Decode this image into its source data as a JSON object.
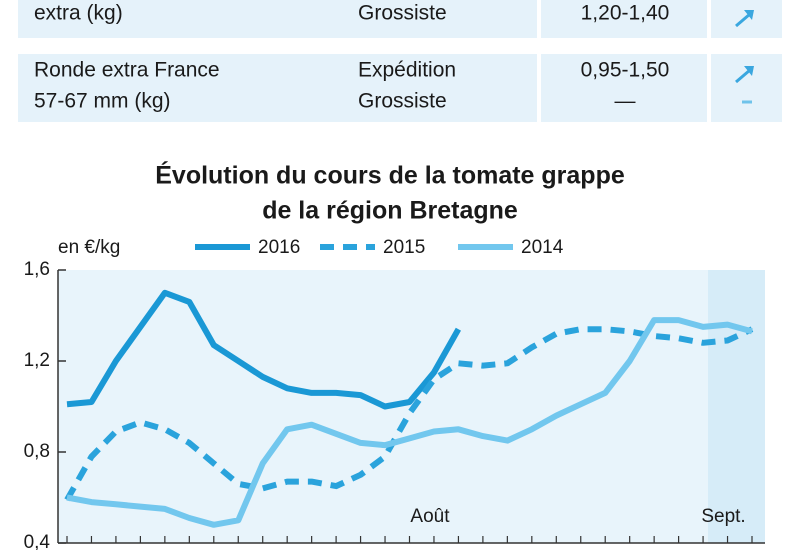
{
  "table": {
    "rows": [
      [
        [
          "extra (kg)"
        ],
        [
          "Grossiste"
        ],
        [
          "1,20-1,40"
        ]
      ],
      [
        [
          "Ronde extra France",
          "57-67 mm (kg)"
        ],
        [
          "Expédition",
          "Grossiste"
        ],
        [
          "0,95-1,50",
          "—"
        ]
      ]
    ]
  },
  "chart_data": {
    "type": "line",
    "title": [
      "Évolution du cours de la tomate grappe",
      "de la région Bretagne"
    ],
    "ylabel": "en €/kg",
    "categories": [
      null,
      null,
      null,
      null,
      null,
      null,
      null,
      null,
      null,
      null,
      null,
      null,
      null,
      null,
      null,
      "Août",
      null,
      null,
      null,
      null,
      null,
      null,
      null,
      null,
      null,
      null,
      null,
      "Sept.",
      null
    ],
    "series": [
      {
        "name": "2016",
        "color": "#1a98d5",
        "line_style": "solid",
        "values": [
          1.01,
          1.02,
          1.2,
          1.35,
          1.5,
          1.46,
          1.27,
          1.2,
          1.13,
          1.08,
          1.06,
          1.06,
          1.05,
          1.0,
          1.02,
          1.15,
          1.34,
          null,
          null,
          null,
          null,
          null,
          null,
          null,
          null,
          null,
          null,
          null,
          null
        ]
      },
      {
        "name": "2015",
        "color": "#2aa3dc",
        "line_style": "dashed",
        "values": [
          0.59,
          0.78,
          0.89,
          0.93,
          0.9,
          0.84,
          0.75,
          0.66,
          0.64,
          0.67,
          0.67,
          0.65,
          0.7,
          0.78,
          0.97,
          1.12,
          1.19,
          1.18,
          1.19,
          1.26,
          1.32,
          1.34,
          1.34,
          1.33,
          1.31,
          1.3,
          1.28,
          1.29,
          1.34
        ]
      },
      {
        "name": "2014",
        "color": "#72c7ee",
        "line_style": "solid",
        "values": [
          0.6,
          0.58,
          0.57,
          0.56,
          0.55,
          0.51,
          0.48,
          0.5,
          0.75,
          0.9,
          0.92,
          0.88,
          0.84,
          0.83,
          0.86,
          0.89,
          0.9,
          0.87,
          0.85,
          0.9,
          0.96,
          1.01,
          1.06,
          1.2,
          1.38,
          1.38,
          1.35,
          1.36,
          1.33
        ]
      }
    ],
    "ylim": [
      0.4,
      1.6
    ],
    "yticks": [
      {
        "value": 0.4,
        "label": "0,4"
      },
      {
        "value": 0.8,
        "label": "0,8"
      },
      {
        "value": 1.2,
        "label": "1,2"
      },
      {
        "value": 1.6,
        "label": "1,6"
      }
    ],
    "grid": false
  }
}
